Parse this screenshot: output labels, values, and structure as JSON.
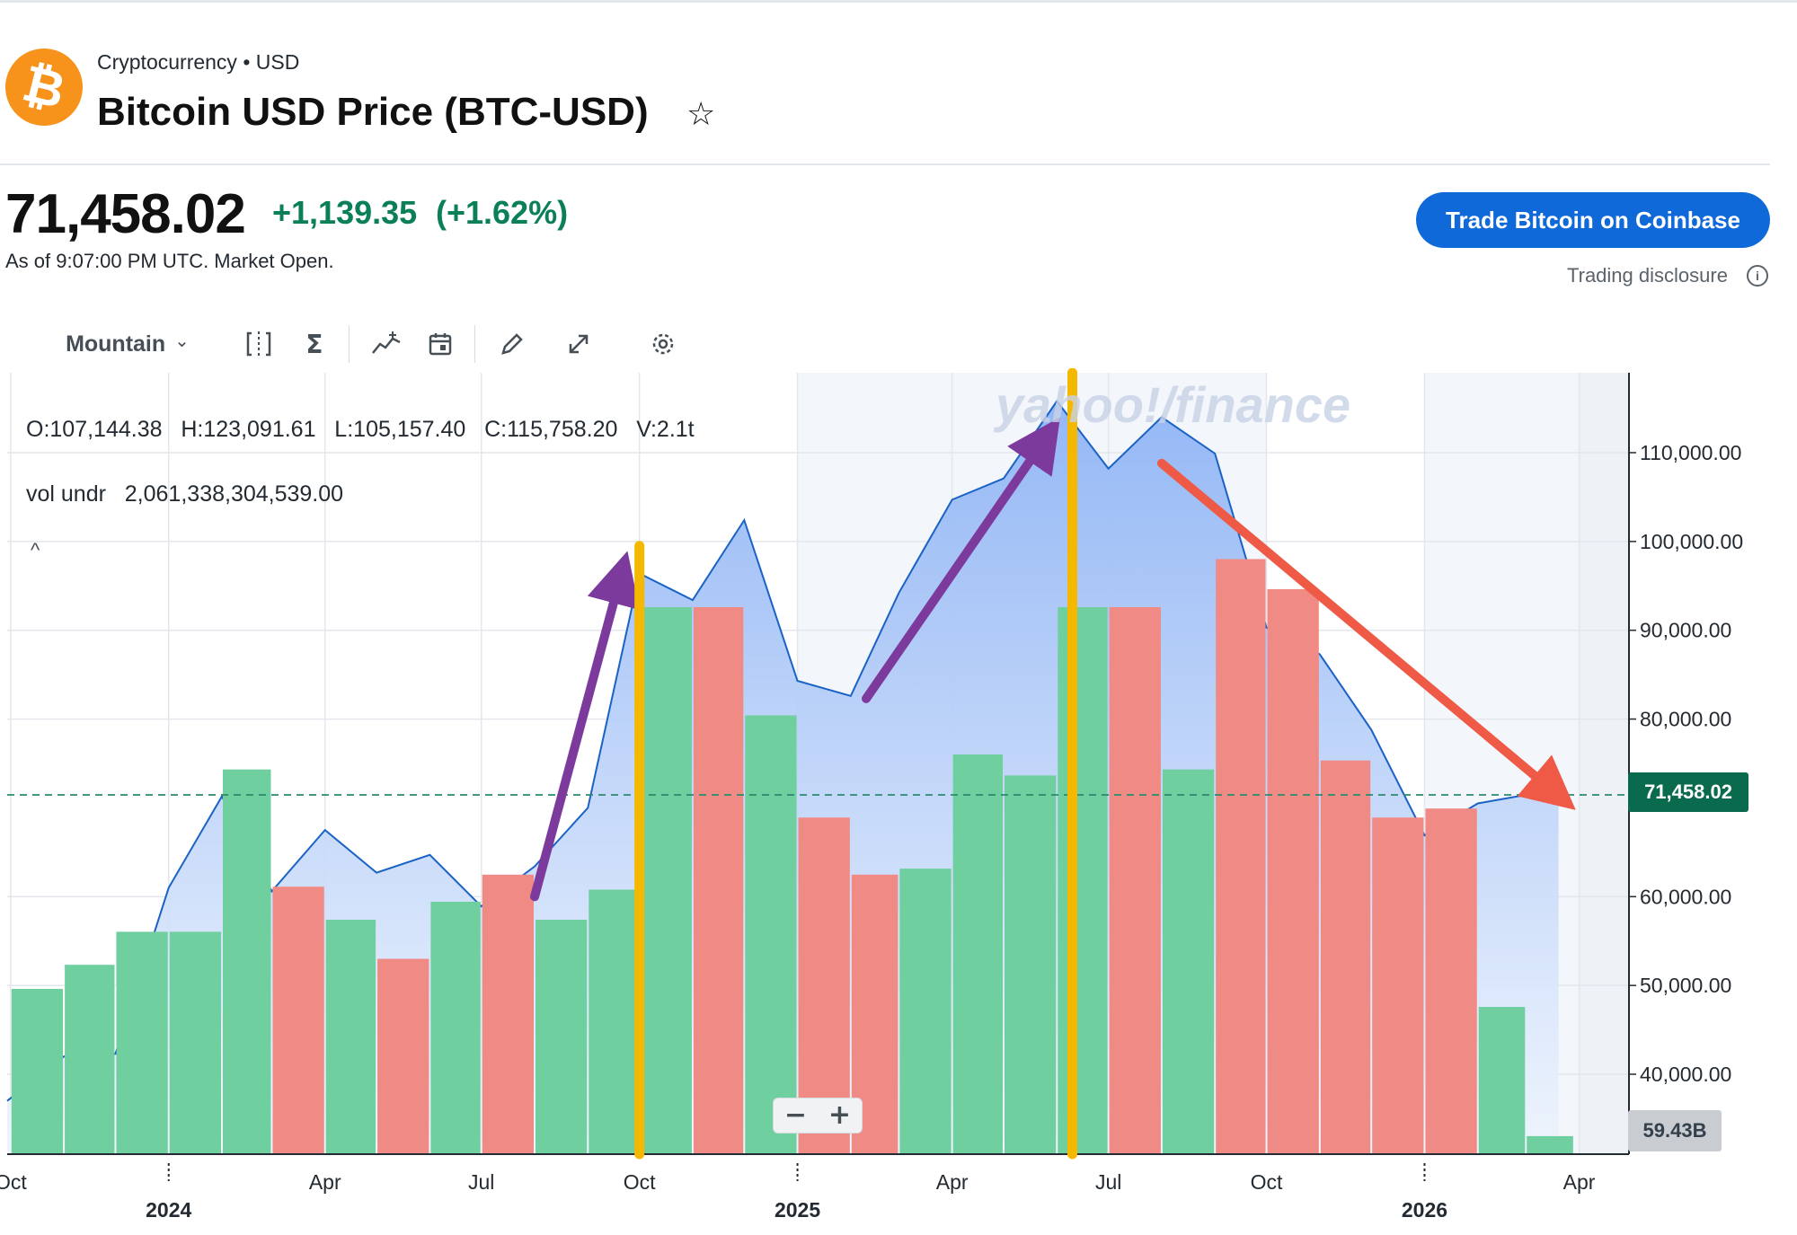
{
  "header": {
    "category": "Cryptocurrency • USD",
    "title": "Bitcoin USD Price (BTC-USD)",
    "logo_glyph": "₿",
    "star_glyph": "☆"
  },
  "quote": {
    "price": "71,458.02",
    "change": "+1,139.35",
    "change_pct": "(+1.62%)",
    "as_of": "As of 9:07:00 PM UTC. Market Open."
  },
  "actions": {
    "trade_button": "Trade Bitcoin on Coinbase",
    "disclosure": "Trading disclosure",
    "info_glyph": "i"
  },
  "toolbar": {
    "chart_type": "Mountain",
    "chevron": "⌄"
  },
  "legend": {
    "ohlc": "O:107,144.38   H:123,091.61   L:105,157.40   C:115,758.20   V:2.1t",
    "vol_undr": "vol undr   2,061,338,304,539.00",
    "collapse": "^"
  },
  "watermark": "yahoo!/finance",
  "zoom": {
    "minus": "−",
    "plus": "+"
  },
  "colors": {
    "line": "#1a62c5",
    "area_top": "#8fb4f5",
    "area_bottom": "#eef4fd",
    "vol_up": "#6fcf9f",
    "vol_down": "#ef8a85",
    "positive": "#0a7f5a",
    "annotation_up": "#7b3a9c",
    "annotation_down": "#ef5a47",
    "annotation_vline": "#f5b800"
  },
  "chart_data": {
    "type": "area",
    "ylim": [
      31000,
      119000
    ],
    "xlim": [
      "2023-09-29",
      "2026-04-30"
    ],
    "y_ticks": [
      "110,000.00",
      "100,000.00",
      "90,000.00",
      "80,000.00",
      "60,000.00",
      "50,000.00",
      "40,000.00"
    ],
    "y_tick_values": [
      110000,
      100000,
      90000,
      80000,
      60000,
      50000,
      40000
    ],
    "x_ticks": [
      {
        "label": "Oct",
        "date": "2023-10-01",
        "year": ""
      },
      {
        "label": "",
        "date": "2024-01-01",
        "year": "2024"
      },
      {
        "label": "Apr",
        "date": "2024-04-01",
        "year": ""
      },
      {
        "label": "Jul",
        "date": "2024-07-01",
        "year": ""
      },
      {
        "label": "Oct",
        "date": "2024-10-01",
        "year": ""
      },
      {
        "label": "",
        "date": "2025-01-01",
        "year": "2025"
      },
      {
        "label": "Apr",
        "date": "2025-04-01",
        "year": ""
      },
      {
        "label": "Jul",
        "date": "2025-07-01",
        "year": ""
      },
      {
        "label": "Oct",
        "date": "2025-10-01",
        "year": ""
      },
      {
        "label": "",
        "date": "2026-01-01",
        "year": "2026"
      },
      {
        "label": "Apr",
        "date": "2026-04-01",
        "year": ""
      }
    ],
    "price": [
      {
        "date": "2023-09-29",
        "close": 37000
      },
      {
        "date": "2023-11-01",
        "close": 42000
      },
      {
        "date": "2023-12-01",
        "close": 42300
      },
      {
        "date": "2024-01-01",
        "close": 61000
      },
      {
        "date": "2024-02-01",
        "close": 71300
      },
      {
        "date": "2024-03-01",
        "close": 60600
      },
      {
        "date": "2024-04-01",
        "close": 67500
      },
      {
        "date": "2024-05-01",
        "close": 62700
      },
      {
        "date": "2024-06-01",
        "close": 64700
      },
      {
        "date": "2024-07-01",
        "close": 58900
      },
      {
        "date": "2024-08-01",
        "close": 63400
      },
      {
        "date": "2024-09-01",
        "close": 70000
      },
      {
        "date": "2024-10-01",
        "close": 96400
      },
      {
        "date": "2024-11-01",
        "close": 93400
      },
      {
        "date": "2024-12-01",
        "close": 102400
      },
      {
        "date": "2025-01-01",
        "close": 84300
      },
      {
        "date": "2025-02-01",
        "close": 82600
      },
      {
        "date": "2025-03-01",
        "close": 94200
      },
      {
        "date": "2025-04-01",
        "close": 104700
      },
      {
        "date": "2025-05-01",
        "close": 107100
      },
      {
        "date": "2025-06-01",
        "close": 115800
      },
      {
        "date": "2025-07-01",
        "close": 108200
      },
      {
        "date": "2025-08-01",
        "close": 114000
      },
      {
        "date": "2025-09-01",
        "close": 109900
      },
      {
        "date": "2025-10-01",
        "close": 90300
      },
      {
        "date": "2025-11-01",
        "close": 87300
      },
      {
        "date": "2025-12-01",
        "close": 78800
      },
      {
        "date": "2026-01-01",
        "close": 66900
      },
      {
        "date": "2026-02-01",
        "close": 70500
      },
      {
        "date": "2026-03-01",
        "close": 71458.02
      },
      {
        "date": "2026-03-20",
        "close": 71458.02
      }
    ],
    "volume": [
      {
        "date": "2023-10-01",
        "value": 0.55,
        "dir": "up"
      },
      {
        "date": "2023-11-01",
        "value": 0.63,
        "dir": "up"
      },
      {
        "date": "2023-12-01",
        "value": 0.74,
        "dir": "up"
      },
      {
        "date": "2024-01-01",
        "value": 0.74,
        "dir": "up"
      },
      {
        "date": "2024-02-01",
        "value": 1.28,
        "dir": "up"
      },
      {
        "date": "2024-03-01",
        "value": 0.89,
        "dir": "down"
      },
      {
        "date": "2024-04-01",
        "value": 0.78,
        "dir": "up"
      },
      {
        "date": "2024-05-01",
        "value": 0.65,
        "dir": "down"
      },
      {
        "date": "2024-06-01",
        "value": 0.84,
        "dir": "up"
      },
      {
        "date": "2024-07-01",
        "value": 0.93,
        "dir": "down"
      },
      {
        "date": "2024-08-01",
        "value": 0.78,
        "dir": "up"
      },
      {
        "date": "2024-09-01",
        "value": 0.88,
        "dir": "up"
      },
      {
        "date": "2024-10-01",
        "value": 1.82,
        "dir": "up"
      },
      {
        "date": "2024-11-01",
        "value": 1.82,
        "dir": "down"
      },
      {
        "date": "2024-12-01",
        "value": 1.46,
        "dir": "up"
      },
      {
        "date": "2025-01-01",
        "value": 1.12,
        "dir": "down"
      },
      {
        "date": "2025-02-01",
        "value": 0.93,
        "dir": "down"
      },
      {
        "date": "2025-03-01",
        "value": 0.95,
        "dir": "up"
      },
      {
        "date": "2025-04-01",
        "value": 1.33,
        "dir": "up"
      },
      {
        "date": "2025-05-01",
        "value": 1.26,
        "dir": "up"
      },
      {
        "date": "2025-06-01",
        "value": 1.82,
        "dir": "up"
      },
      {
        "date": "2025-07-01",
        "value": 1.82,
        "dir": "down"
      },
      {
        "date": "2025-08-01",
        "value": 1.28,
        "dir": "up"
      },
      {
        "date": "2025-09-01",
        "value": 1.98,
        "dir": "down"
      },
      {
        "date": "2025-10-01",
        "value": 1.88,
        "dir": "down"
      },
      {
        "date": "2025-11-01",
        "value": 1.31,
        "dir": "down"
      },
      {
        "date": "2025-12-01",
        "value": 1.12,
        "dir": "down"
      },
      {
        "date": "2026-01-01",
        "value": 1.15,
        "dir": "down"
      },
      {
        "date": "2026-02-01",
        "value": 0.49,
        "dir": "up"
      },
      {
        "date": "2026-03-01",
        "value": 0.06,
        "dir": "up"
      }
    ],
    "volume_ylim": [
      0,
      2.6
    ],
    "current_price_label": "71,458.02",
    "current_price": 71458.02,
    "current_volume_label": "59.43B",
    "annotations": [
      {
        "type": "arrow",
        "color": "purple",
        "from": [
          "2024-08-01",
          60000
        ],
        "to": [
          "2024-09-20",
          96000
        ]
      },
      {
        "type": "arrow",
        "color": "purple",
        "from": [
          "2025-02-10",
          82300
        ],
        "to": [
          "2025-05-25",
          111500
        ]
      },
      {
        "type": "arrow",
        "color": "red",
        "from": [
          "2025-08-01",
          108800
        ],
        "to": [
          "2026-03-18",
          71700
        ]
      },
      {
        "type": "vline",
        "color": "yellow",
        "date": "2024-10-01",
        "from": 31000,
        "to": 99500
      },
      {
        "type": "vline",
        "color": "yellow",
        "date": "2025-06-10",
        "from": 31000,
        "to": 119000
      }
    ]
  }
}
